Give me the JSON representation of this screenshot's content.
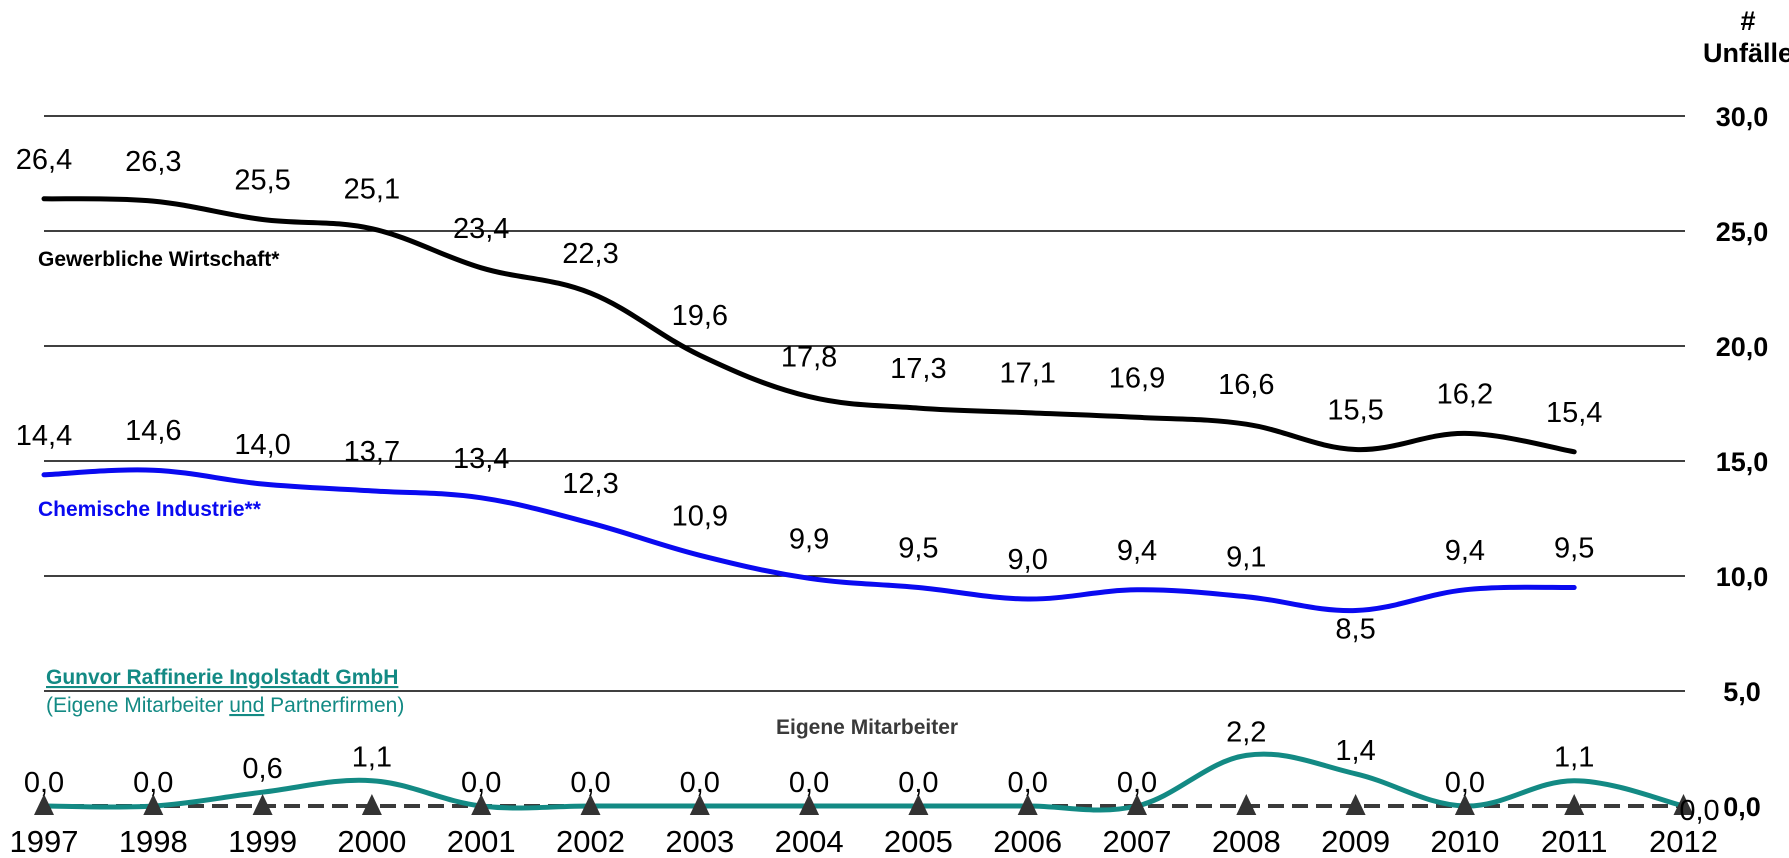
{
  "chart_data": {
    "type": "line",
    "y_axis_label_line1": "#",
    "y_axis_label_line2": "Unfälle",
    "ylim": [
      0,
      30
    ],
    "y_ticks": [
      "0,0",
      "5,0",
      "10,0",
      "15,0",
      "20,0",
      "25,0",
      "30,0"
    ],
    "y_axis_position": "right",
    "grid": true,
    "x_tick_labels": [
      "1997",
      "1998",
      "1999",
      "2000",
      "2001",
      "2002",
      "2003",
      "2004",
      "2005",
      "2006",
      "2007",
      "2008",
      "2009",
      "2010",
      "2011",
      "2012"
    ],
    "series": [
      {
        "name": "Gewerbliche Wirtschaft*",
        "color": "#000000",
        "x": [
          "1997",
          "1998",
          "1999",
          "2000",
          "2001",
          "2002",
          "2003",
          "2004",
          "2005",
          "2006",
          "2007",
          "2008",
          "2009",
          "2010",
          "2011"
        ],
        "values": [
          26.4,
          26.3,
          25.5,
          25.1,
          23.4,
          22.3,
          19.6,
          17.8,
          17.3,
          17.1,
          16.9,
          16.6,
          15.5,
          16.2,
          15.4
        ],
        "labels": [
          "26,4",
          "26,3",
          "25,5",
          "25,1",
          "23,4",
          "22,3",
          "19,6",
          "17,8",
          "17,3",
          "17,1",
          "16,9",
          "16,6",
          "15,5",
          "16,2",
          "15,4"
        ]
      },
      {
        "name": "Chemische Industrie**",
        "color": "#0a0af0",
        "x": [
          "1997",
          "1998",
          "1999",
          "2000",
          "2001",
          "2002",
          "2003",
          "2004",
          "2005",
          "2006",
          "2007",
          "2008",
          "2009",
          "2010",
          "2011"
        ],
        "values": [
          14.4,
          14.6,
          14.0,
          13.7,
          13.4,
          12.3,
          10.9,
          9.9,
          9.5,
          9.0,
          9.4,
          9.1,
          8.5,
          9.4,
          9.5
        ],
        "labels": [
          "14,4",
          "14,6",
          "14,0",
          "13,7",
          "13,4",
          "12,3",
          "10,9",
          "9,9",
          "9,5",
          "9,0",
          "9,4",
          "9,1",
          "8,5",
          "9,4",
          "9,5"
        ]
      },
      {
        "name": "Gunvor Raffinerie Ingolstadt GmbH",
        "subtitle_parts": [
          "(Eigene Mitarbeiter ",
          "und",
          " Partnerfirmen)"
        ],
        "color": "#138a84",
        "x": [
          "1997",
          "1998",
          "1999",
          "2000",
          "2001",
          "2002",
          "2003",
          "2004",
          "2005",
          "2006",
          "2007",
          "2008",
          "2009",
          "2010",
          "2011",
          "2012"
        ],
        "values": [
          0.0,
          0.0,
          0.6,
          1.1,
          0.0,
          0.0,
          0.0,
          0.0,
          0.0,
          0.0,
          0.0,
          2.2,
          1.4,
          0.0,
          1.1,
          0.0
        ],
        "labels": [
          "0,0",
          "0,0",
          "0,6",
          "1,1",
          "0,0",
          "0,0",
          "0,0",
          "0,0",
          "0,0",
          "0,0",
          "0,0",
          "2,2",
          "1,4",
          "0,0",
          "1,1",
          "0,0"
        ]
      },
      {
        "name": "Eigene Mitarbeiter",
        "color": "#3a3a3a",
        "style": "dashed, triangle markers",
        "x": [
          "1997",
          "1998",
          "1999",
          "2000",
          "2001",
          "2002",
          "2003",
          "2004",
          "2005",
          "2006",
          "2007",
          "2008",
          "2009",
          "2010",
          "2011",
          "2012"
        ],
        "values": [
          0,
          0,
          0,
          0,
          0,
          0,
          0,
          0,
          0,
          0,
          0,
          0,
          0,
          0,
          0,
          0
        ]
      }
    ]
  }
}
